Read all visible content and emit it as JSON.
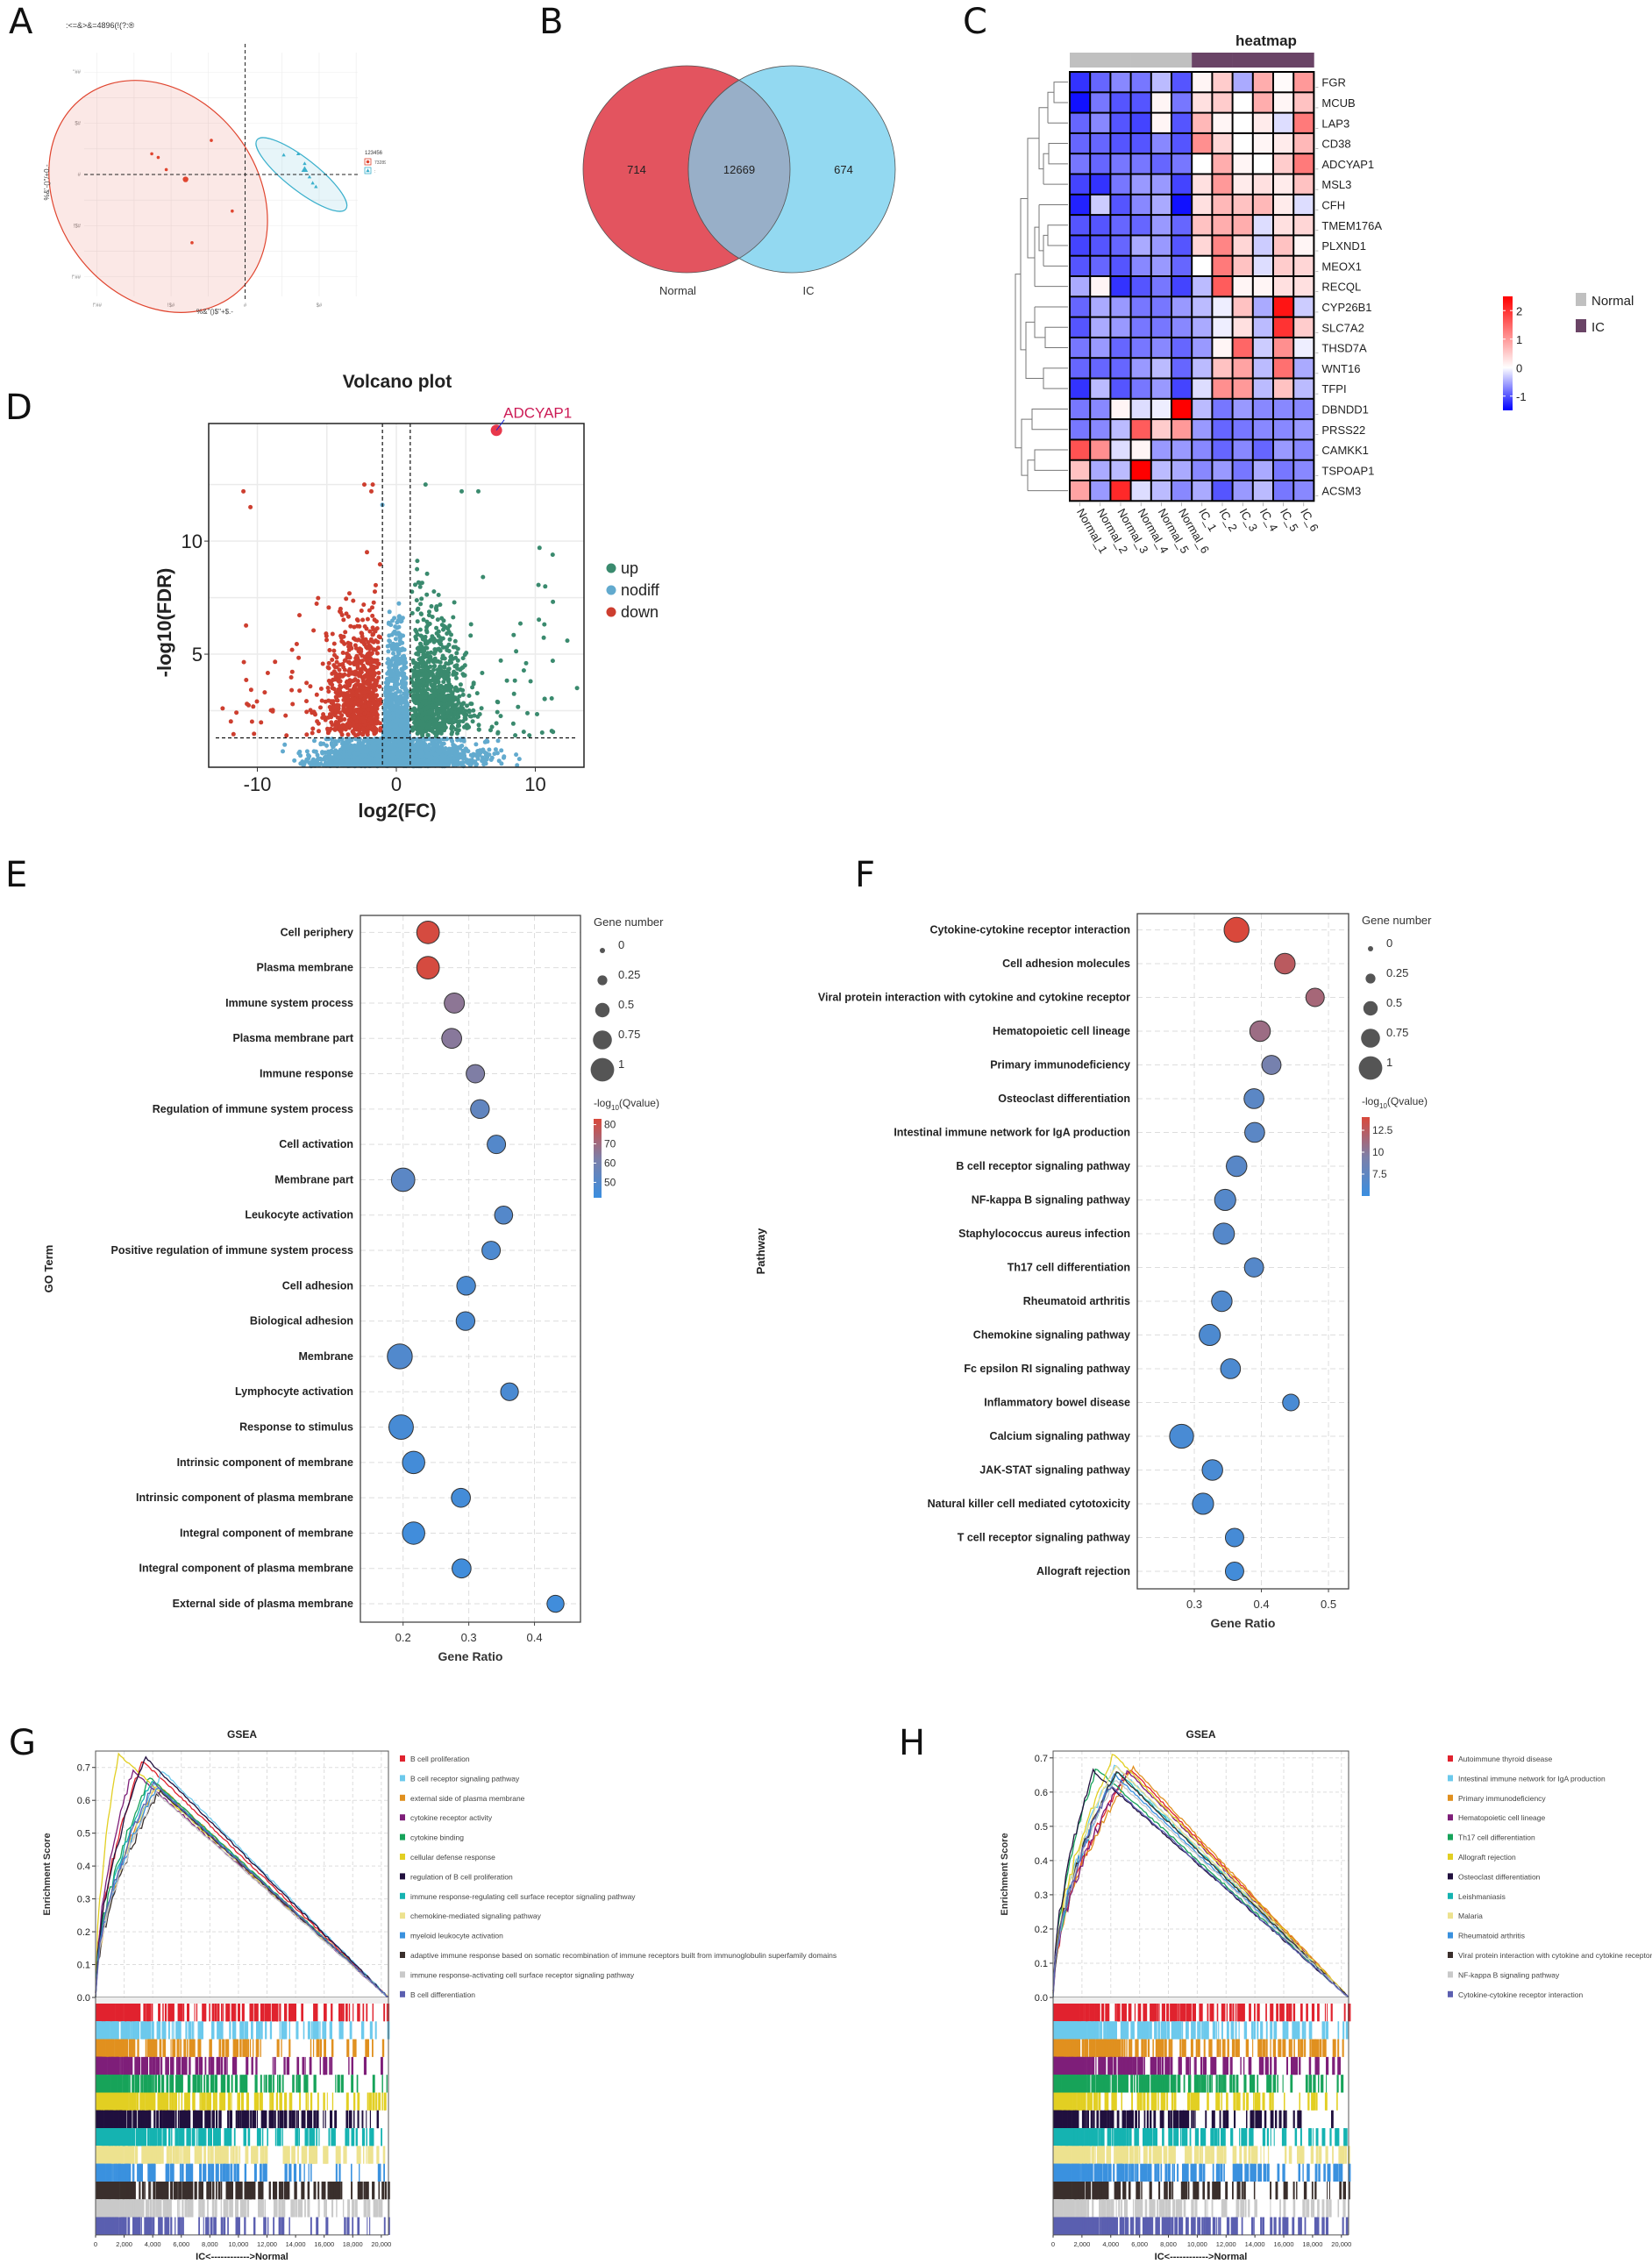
{
  "panel_labels": {
    "A": "A",
    "B": "B",
    "C": "C",
    "D": "D",
    "E": "E",
    "F": "F",
    "G": "G",
    "H": "H"
  },
  "chart_data": [
    {
      "id": "A",
      "type": "scatter",
      "title": ":<=&>&=4896(!(?:®",
      "xlabel": "%&\"()$\"+$.-",
      "ylabel": "%&'-()\"/+0.-",
      "x_ticks": [
        "!\"##",
        "!$#",
        "#",
        "$#"
      ],
      "y_ticks": [
        "\"##",
        "$#",
        "#",
        "!$#",
        "!\"##"
      ],
      "xlim": [
        -100,
        70
      ],
      "ylim": [
        -100,
        100
      ],
      "legend_title": "123456",
      "legend": [
        {
          "label": "73289",
          "color": "#e0452f",
          "shape": "circle"
        },
        {
          "label": ":",
          "color": "#3bb0cc",
          "shape": "triangle"
        }
      ],
      "series": [
        {
          "name": "73289",
          "color": "#e0452f",
          "points": [
            [
              -58,
              17
            ],
            [
              -54,
              14
            ],
            [
              -49,
              4
            ],
            [
              -21,
              28
            ],
            [
              -8,
              -30
            ],
            [
              -33,
              -56
            ]
          ],
          "centroid": [
            -37,
            -4
          ],
          "ellipse": {
            "cx": -54,
            "cy": -18,
            "rx": 62,
            "ry": 102,
            "rotate": -37
          }
        },
        {
          "name": ":",
          "color": "#3bb0cc",
          "points": [
            [
              24,
              16
            ],
            [
              33,
              17
            ],
            [
              37,
              9
            ],
            [
              40,
              -2
            ],
            [
              42,
              -7
            ],
            [
              44,
              -10
            ]
          ],
          "centroid": [
            37,
            4
          ],
          "ellipse": {
            "cx": 35,
            "cy": 0,
            "rx": 35,
            "ry": 13,
            "rotate": 38
          }
        }
      ]
    },
    {
      "id": "B",
      "type": "venn",
      "sets": [
        {
          "label": "Normal",
          "only": 714,
          "color": "#e3545f"
        },
        {
          "label": "IC",
          "only": 674,
          "color": "#93d9f1"
        }
      ],
      "intersection": 12669,
      "intersection_color": "#98afc8"
    },
    {
      "id": "C",
      "type": "heatmap",
      "title": "heatmap",
      "columns": [
        "Normal_1",
        "Normal_2",
        "Normal_3",
        "Normal_4",
        "Normal_5",
        "Normal_6",
        "IC_1",
        "IC_2",
        "IC_3",
        "IC_4",
        "IC_5",
        "IC_6"
      ],
      "groups": [
        "Normal",
        "Normal",
        "Normal",
        "Normal",
        "Normal",
        "Normal",
        "IC",
        "IC",
        "IC",
        "IC",
        "IC",
        "IC"
      ],
      "group_colors": {
        "Normal": "#c0c0c0",
        "IC": "#6a4466"
      },
      "rows": [
        "FGR",
        "MCUB",
        "LAP3",
        "CD38",
        "ADCYAP1",
        "MSL3",
        "CFH",
        "TMEM176A",
        "PLXND1",
        "MEOX1",
        "RECQL",
        "CYP26B1",
        "SLC7A2",
        "THSD7A",
        "WNT16",
        "TFPI",
        "DBNDD1",
        "PRSS22",
        "CAMKK1",
        "TSPOAP1",
        "ACSM3"
      ],
      "values": [
        [
          -1.2,
          -0.9,
          -0.7,
          -0.8,
          -0.4,
          -1.0,
          0.1,
          0.5,
          -0.5,
          0.8,
          0.05,
          1.0
        ],
        [
          -1.4,
          -0.8,
          -1.0,
          -1.0,
          0.1,
          -0.8,
          0.3,
          0.5,
          0.0,
          0.8,
          0.1,
          0.6
        ],
        [
          -0.9,
          -0.7,
          -1.0,
          -1.1,
          0.1,
          -1.0,
          0.7,
          0.1,
          0.0,
          0.2,
          -0.2,
          1.3
        ],
        [
          -0.9,
          -0.9,
          -1.0,
          -1.0,
          -0.7,
          -1.0,
          1.1,
          0.4,
          0.0,
          0.1,
          0.2,
          0.7
        ],
        [
          -0.8,
          -0.9,
          -0.8,
          -0.8,
          -0.9,
          -0.8,
          0.0,
          0.8,
          0.1,
          0.0,
          0.5,
          1.3
        ],
        [
          -1.1,
          -1.2,
          -0.8,
          -0.6,
          -0.6,
          -1.1,
          0.3,
          1.0,
          0.2,
          0.3,
          0.2,
          0.6
        ],
        [
          -1.3,
          -0.3,
          -1.0,
          -0.7,
          -0.5,
          -1.4,
          0.3,
          0.7,
          0.6,
          0.7,
          0.2,
          -0.2
        ],
        [
          -1.0,
          -1.0,
          -0.9,
          -0.9,
          -0.6,
          -0.9,
          0.6,
          0.8,
          0.8,
          -0.2,
          0.3,
          0.4
        ],
        [
          -1.1,
          -1.0,
          -0.9,
          -0.5,
          -0.6,
          -1.0,
          0.4,
          1.2,
          0.4,
          -0.3,
          0.6,
          0.1
        ],
        [
          -1.0,
          -0.9,
          -1.0,
          -0.7,
          -0.6,
          -0.9,
          0.0,
          1.3,
          0.6,
          -0.2,
          0.5,
          0.4
        ],
        [
          -0.5,
          0.1,
          -1.2,
          -1.0,
          -0.8,
          -1.1,
          -0.4,
          1.6,
          0.1,
          0.1,
          0.3,
          0.3
        ],
        [
          -0.9,
          -0.5,
          -0.6,
          -0.8,
          -0.8,
          -0.6,
          -0.4,
          -0.1,
          0.6,
          -0.5,
          2.3,
          -0.3
        ],
        [
          -1.0,
          -0.5,
          -0.6,
          -0.8,
          -0.8,
          -0.7,
          -0.5,
          -0.1,
          0.3,
          -0.4,
          2.0,
          0.5
        ],
        [
          -0.8,
          -0.6,
          -0.9,
          -0.8,
          -0.7,
          -0.9,
          -0.6,
          0.1,
          1.5,
          -0.3,
          1.1,
          -0.1
        ],
        [
          -0.9,
          -0.9,
          -0.9,
          -0.6,
          -0.4,
          -0.9,
          -0.4,
          0.6,
          0.9,
          -0.4,
          1.4,
          -0.5
        ],
        [
          -1.2,
          -0.4,
          -1.0,
          -0.8,
          -0.6,
          -1.1,
          -0.2,
          1.1,
          1.0,
          -0.4,
          0.6,
          -0.4
        ],
        [
          -0.8,
          -0.7,
          0.1,
          -0.2,
          -0.1,
          2.5,
          -0.4,
          -0.8,
          -0.6,
          -0.7,
          -0.7,
          -0.7
        ],
        [
          -0.8,
          -0.7,
          -0.4,
          1.6,
          0.5,
          1.0,
          -0.6,
          -0.9,
          -0.8,
          -0.7,
          -0.7,
          -0.6
        ],
        [
          1.7,
          1.1,
          -0.2,
          0.1,
          -0.6,
          -0.6,
          -0.7,
          -0.9,
          -0.7,
          -0.9,
          -0.6,
          -0.7
        ],
        [
          0.6,
          -0.5,
          -0.4,
          2.5,
          -0.4,
          -0.5,
          -0.7,
          -0.6,
          -0.8,
          -0.5,
          -0.8,
          -0.7
        ],
        [
          0.9,
          -0.6,
          2.1,
          -0.2,
          -0.4,
          -0.7,
          -0.5,
          -1.0,
          -0.6,
          -0.4,
          -0.8,
          -0.7
        ]
      ],
      "colorbar_ticks": [
        2,
        1,
        0,
        -1
      ],
      "colorbar_range": [
        -1.5,
        2.5
      ],
      "legend": [
        {
          "label": "Normal",
          "color": "#c0c0c0"
        },
        {
          "label": "IC",
          "color": "#6a4466"
        }
      ]
    },
    {
      "id": "D",
      "type": "scatter",
      "title": "Volcano plot",
      "xlabel": "log2(FC)",
      "ylabel": "-log10(FDR)",
      "xlim": [
        -13.5,
        13.5
      ],
      "ylim": [
        0,
        15.2
      ],
      "x_ticks": [
        -10,
        0,
        10
      ],
      "y_ticks": [
        5,
        10
      ],
      "thresholds": {
        "x": [
          -1,
          1
        ],
        "y": 1.3
      },
      "legend": [
        {
          "label": "up",
          "color": "#3a8a6e"
        },
        {
          "label": "nodiff",
          "color": "#62aace"
        },
        {
          "label": "down",
          "color": "#cd3e2f"
        }
      ],
      "annotation": {
        "label": "ADCYAP1",
        "x": 7.2,
        "y": 14.9,
        "color": "#cc1a55"
      },
      "series_summary": {
        "up_count_est": 700,
        "down_count_est": 600,
        "nodiff_count_est": 2500
      }
    },
    {
      "id": "E",
      "type": "scatter",
      "subtype": "bubble",
      "xlabel": "Gene Ratio",
      "ylabel": "GO Term",
      "xlim": [
        0.135,
        0.47
      ],
      "x_ticks": [
        0.2,
        0.3,
        0.4
      ],
      "size_legend_title": "Gene number",
      "size_legend": [
        "0",
        "0.25",
        "0.5",
        "0.75",
        "1"
      ],
      "color_legend_title": "-log10(Qvalue)",
      "color_ticks": [
        80,
        70,
        60,
        50
      ],
      "color_range": [
        42,
        83
      ],
      "terms": [
        "Cell periphery",
        "Plasma membrane",
        "Immune system process",
        "Plasma membrane part",
        "Immune response",
        "Regulation of immune system process",
        "Cell activation",
        "Membrane part",
        "Leukocyte activation",
        "Positive regulation of immune system process",
        "Cell adhesion",
        "Biological adhesion",
        "Membrane",
        "Lymphocyte activation",
        "Response to stimulus",
        "Intrinsic component of membrane",
        "Intrinsic component of plasma membrane",
        "Integral component of membrane",
        "Integral component of plasma membrane",
        "External side of plasma membrane"
      ],
      "gene_ratio": [
        0.238,
        0.238,
        0.278,
        0.274,
        0.31,
        0.317,
        0.342,
        0.2,
        0.353,
        0.334,
        0.296,
        0.295,
        0.195,
        0.362,
        0.197,
        0.216,
        0.288,
        0.216,
        0.289,
        0.432
      ],
      "gene_number": [
        0.62,
        0.62,
        0.42,
        0.4,
        0.3,
        0.32,
        0.3,
        0.7,
        0.28,
        0.3,
        0.32,
        0.32,
        0.85,
        0.26,
        0.8,
        0.6,
        0.34,
        0.6,
        0.34,
        0.22
      ],
      "qvalue": [
        82,
        82,
        66,
        65,
        63,
        54,
        50,
        52,
        50,
        48,
        47,
        47,
        49,
        47,
        46,
        45,
        45,
        44,
        44,
        44
      ]
    },
    {
      "id": "F",
      "type": "scatter",
      "subtype": "bubble",
      "xlabel": "Gene Ratio",
      "ylabel": "Pathway",
      "xlim": [
        0.215,
        0.53
      ],
      "x_ticks": [
        0.3,
        0.4,
        0.5
      ],
      "size_legend_title": "Gene number",
      "size_legend": [
        "0",
        "0.25",
        "0.5",
        "0.75",
        "1"
      ],
      "color_legend_title": "-log10(Qvalue)",
      "color_ticks": [
        12.5,
        10,
        7.5
      ],
      "color_range": [
        5,
        14
      ],
      "terms": [
        "Cytokine-cytokine receptor interaction",
        "Cell adhesion molecules",
        "Viral protein interaction with cytokine and cytokine receptor",
        "Hematopoietic cell lineage",
        "Primary immunodeficiency",
        "Osteoclast differentiation",
        "Intestinal immune network for IgA production",
        "B cell receptor signaling pathway",
        "NF-kappa B signaling pathway",
        "Staphylococcus aureus infection",
        "Th17 cell differentiation",
        "Rheumatoid arthritis",
        "Chemokine signaling pathway",
        "Fc epsilon RI signaling pathway",
        "Inflammatory bowel disease",
        "Calcium signaling pathway",
        "JAK-STAT signaling pathway",
        "Natural killer cell mediated cytotoxicity",
        "T cell receptor signaling pathway",
        "Allograft rejection"
      ],
      "gene_ratio": [
        0.363,
        0.435,
        0.48,
        0.398,
        0.415,
        0.389,
        0.39,
        0.363,
        0.346,
        0.344,
        0.389,
        0.341,
        0.323,
        0.354,
        0.444,
        0.281,
        0.327,
        0.313,
        0.36,
        0.36
      ],
      "gene_number": [
        0.85,
        0.45,
        0.3,
        0.45,
        0.35,
        0.4,
        0.4,
        0.45,
        0.5,
        0.5,
        0.35,
        0.45,
        0.5,
        0.4,
        0.2,
        0.75,
        0.45,
        0.5,
        0.3,
        0.3
      ],
      "qvalue": [
        14,
        12.5,
        11.5,
        11,
        9,
        7.2,
        7.2,
        7,
        6.8,
        6.8,
        6.8,
        6.5,
        6.3,
        6.2,
        6,
        6,
        6,
        6,
        5.8,
        5.6
      ]
    },
    {
      "id": "G",
      "type": "line",
      "title": "GSEA",
      "ylabel": "Enrichment Score",
      "xlabel": "IC<------------>Normal",
      "ylim": [
        0,
        0.75
      ],
      "y_ticks": [
        0.0,
        0.1,
        0.2,
        0.3,
        0.4,
        0.5,
        0.6,
        0.7
      ],
      "xlim": [
        0,
        20500
      ],
      "x_ticks": [
        "0",
        "2,000",
        "4,000",
        "6,000",
        "8,000",
        "10,000",
        "12,000",
        "14,000",
        "16,000",
        "18,000",
        "20,000"
      ],
      "series": [
        {
          "name": "B cell proliferation",
          "color": "#e0232e",
          "peak_x": 3300,
          "peak": 0.72
        },
        {
          "name": "B cell receptor signaling pathway",
          "color": "#6cc9ec",
          "peak_x": 4700,
          "peak": 0.69
        },
        {
          "name": "external side of plasma membrane",
          "color": "#e0901f",
          "peak_x": 4300,
          "peak": 0.65
        },
        {
          "name": "cytokine receptor activity",
          "color": "#7e1f79",
          "peak_x": 2600,
          "peak": 0.69
        },
        {
          "name": "cytokine binding",
          "color": "#17a35a",
          "peak_x": 3800,
          "peak": 0.67
        },
        {
          "name": "cellular defense response",
          "color": "#e2cf23",
          "peak_x": 1600,
          "peak": 0.74
        },
        {
          "name": "regulation of B cell proliferation",
          "color": "#21103e",
          "peak_x": 3500,
          "peak": 0.73
        },
        {
          "name": "immune response-regulating cell surface receptor signaling pathway",
          "color": "#15b3b1",
          "peak_x": 3900,
          "peak": 0.66
        },
        {
          "name": "chemokine-mediated signaling pathway",
          "color": "#ede28f",
          "peak_x": 4200,
          "peak": 0.64
        },
        {
          "name": "myeloid leukocyte activation",
          "color": "#3a91de",
          "peak_x": 4300,
          "peak": 0.64
        },
        {
          "name": "adaptive immune response based on somatic recombination of immune receptors built from immunoglobulin superfamily domains",
          "color": "#3a2f2c",
          "peak_x": 4500,
          "peak": 0.63
        },
        {
          "name": "immune response-activating cell surface receptor signaling pathway",
          "color": "#c9c9c9",
          "peak_x": 4300,
          "peak": 0.62
        },
        {
          "name": "B cell differentiation",
          "color": "#5b5fb0",
          "peak_x": 4100,
          "peak": 0.65
        }
      ]
    },
    {
      "id": "H",
      "type": "line",
      "title": "GSEA",
      "ylabel": "Enrichment Score",
      "xlabel": "IC<------------>Normal",
      "ylim": [
        0,
        0.72
      ],
      "y_ticks": [
        0.0,
        0.1,
        0.2,
        0.3,
        0.4,
        0.5,
        0.6,
        0.7
      ],
      "xlim": [
        0,
        20500
      ],
      "x_ticks": [
        "0",
        "2,000",
        "4,000",
        "6,000",
        "8,000",
        "10,000",
        "12,000",
        "14,000",
        "16,000",
        "18,000",
        "20,000"
      ],
      "series": [
        {
          "name": "Autoimmune thyroid disease",
          "color": "#e0232e",
          "peak_x": 5300,
          "peak": 0.67
        },
        {
          "name": "Intestinal immune network for IgA production",
          "color": "#6cc9ec",
          "peak_x": 4300,
          "peak": 0.68
        },
        {
          "name": "Primary immunodeficiency",
          "color": "#e0901f",
          "peak_x": 5600,
          "peak": 0.67
        },
        {
          "name": "Hematopoietic cell lineage",
          "color": "#7e1f79",
          "peak_x": 5200,
          "peak": 0.66
        },
        {
          "name": "Th17 cell differentiation",
          "color": "#17a35a",
          "peak_x": 3000,
          "peak": 0.67
        },
        {
          "name": "Allograft rejection",
          "color": "#e2cf23",
          "peak_x": 4200,
          "peak": 0.71
        },
        {
          "name": "Osteoclast differentiation",
          "color": "#21103e",
          "peak_x": 2800,
          "peak": 0.66
        },
        {
          "name": "Leishmaniasis",
          "color": "#15b3b1",
          "peak_x": 4500,
          "peak": 0.66
        },
        {
          "name": "Malaria",
          "color": "#ede28f",
          "peak_x": 4300,
          "peak": 0.68
        },
        {
          "name": "Rheumatoid arthritis",
          "color": "#3a91de",
          "peak_x": 4300,
          "peak": 0.65
        },
        {
          "name": "Viral protein interaction with cytokine and cytokine receptor",
          "color": "#3a2f2c",
          "peak_x": 4400,
          "peak": 0.66
        },
        {
          "name": "NF-kappa B signaling pathway",
          "color": "#c9c9c9",
          "peak_x": 4300,
          "peak": 0.64
        },
        {
          "name": "Cytokine-cytokine receptor interaction",
          "color": "#5b5fb0",
          "peak_x": 4000,
          "peak": 0.62
        }
      ]
    }
  ]
}
